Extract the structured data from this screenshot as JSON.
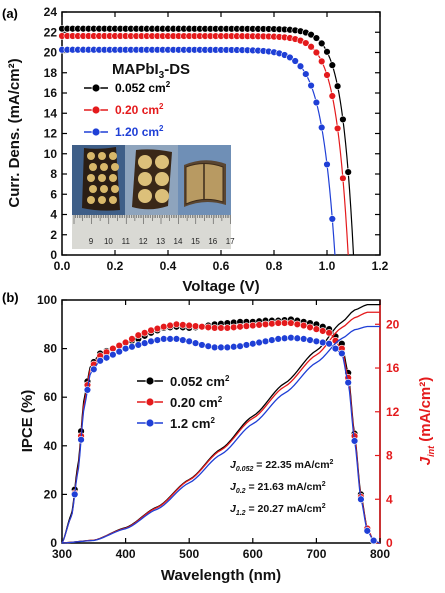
{
  "chart_data": [
    {
      "panel": "(a)",
      "type": "line",
      "inset_title": "MAPbI",
      "inset_title_sub": "3",
      "inset_title_suffix": "-DS",
      "xlabel": "Voltage (V)",
      "ylabel": "Curr. Dens. (mA/cm²)",
      "xlim": [
        0,
        1.2
      ],
      "ylim": [
        0,
        24
      ],
      "xticks": [
        "0.0",
        "0.2",
        "0.4",
        "0.6",
        "0.8",
        "1.0",
        "1.2"
      ],
      "yticks": [
        "0",
        "2",
        "4",
        "6",
        "8",
        "10",
        "12",
        "14",
        "16",
        "18",
        "20",
        "22",
        "24"
      ],
      "legend_position": "upper-middle",
      "series": [
        {
          "name": "0.052 cm",
          "unit_sup": "2",
          "color": "#000000",
          "jsc": 22.35,
          "voc": 1.1,
          "n": 1.7
        },
        {
          "name": "0.20 cm",
          "unit_sup": "2",
          "color": "#e41a1c",
          "jsc": 21.63,
          "voc": 1.08,
          "n": 1.8
        },
        {
          "name": "1.20 cm",
          "unit_sup": "2",
          "color": "#1f3fd6",
          "jsc": 20.27,
          "voc": 1.03,
          "n": 2.0
        }
      ],
      "ruler_ticks": [
        "9",
        "10",
        "11",
        "12",
        "13",
        "14",
        "15",
        "16",
        "17"
      ]
    },
    {
      "panel": "(b)",
      "type": "line",
      "xlabel": "Wavelength (nm)",
      "ylabel": "IPCE (%)",
      "ylabel_right": "J",
      "ylabel_right_sub": "int",
      "ylabel_right_suffix": " (mA/cm²)",
      "xlim": [
        300,
        800
      ],
      "ylim": [
        0,
        100
      ],
      "ylim_right": [
        0,
        22.22
      ],
      "xticks": [
        "300",
        "400",
        "500",
        "600",
        "700",
        "800"
      ],
      "yticks": [
        "0",
        "20",
        "40",
        "60",
        "80",
        "100"
      ],
      "yticks_right": [
        "0",
        "4",
        "8",
        "12",
        "16",
        "20"
      ],
      "right_axis_color": "#e41a1c",
      "legend_position": "center",
      "annotations": [
        {
          "symbol": "J",
          "sub": "0.052",
          "text": " = 22.35 mA/cm",
          "sup": "2"
        },
        {
          "symbol": "J",
          "sub": "0.2",
          "text": " = 21.63 mA/cm",
          "sup": "2"
        },
        {
          "symbol": "J",
          "sub": "1.2",
          "text": " = 20.27 mA/cm",
          "sup": "2"
        }
      ],
      "series": [
        {
          "name": "0.052 cm",
          "unit_sup": "2",
          "color": "#000000",
          "ipce": [
            [
              300,
              0
            ],
            [
              315,
              12
            ],
            [
              325,
              32
            ],
            [
              335,
              60
            ],
            [
              345,
              73
            ],
            [
              360,
              78
            ],
            [
              380,
              80
            ],
            [
              400,
              82.5
            ],
            [
              420,
              84
            ],
            [
              440,
              86.5
            ],
            [
              460,
              88.5
            ],
            [
              480,
              89
            ],
            [
              500,
              88.5
            ],
            [
              520,
              89
            ],
            [
              540,
              90
            ],
            [
              560,
              90.5
            ],
            [
              580,
              91
            ],
            [
              600,
              91
            ],
            [
              620,
              91.5
            ],
            [
              640,
              91.5
            ],
            [
              660,
              92
            ],
            [
              680,
              91
            ],
            [
              700,
              90
            ],
            [
              720,
              88
            ],
            [
              740,
              82
            ],
            [
              750,
              70
            ],
            [
              760,
              45
            ],
            [
              770,
              20
            ],
            [
              780,
              6
            ],
            [
              790,
              1
            ],
            [
              800,
              0
            ]
          ],
          "jsc_int": [
            [
              300,
              0
            ],
            [
              350,
              0.25
            ],
            [
              400,
              1.4
            ],
            [
              450,
              3.3
            ],
            [
              500,
              5.8
            ],
            [
              550,
              8.6
            ],
            [
              600,
              11.6
            ],
            [
              650,
              14.6
            ],
            [
              700,
              17.6
            ],
            [
              740,
              20.2
            ],
            [
              760,
              21.3
            ],
            [
              780,
              21.8
            ],
            [
              800,
              21.8
            ]
          ]
        },
        {
          "name": "0.20 cm",
          "unit_sup": "2",
          "color": "#e41a1c",
          "ipce": [
            [
              300,
              0
            ],
            [
              315,
              11
            ],
            [
              325,
              30
            ],
            [
              335,
              58
            ],
            [
              345,
              72
            ],
            [
              360,
              77
            ],
            [
              380,
              80
            ],
            [
              400,
              82.5
            ],
            [
              420,
              85.5
            ],
            [
              440,
              87.5
            ],
            [
              460,
              89
            ],
            [
              480,
              90
            ],
            [
              500,
              89.5
            ],
            [
              520,
              89
            ],
            [
              540,
              88.5
            ],
            [
              560,
              88.5
            ],
            [
              580,
              89
            ],
            [
              600,
              89.5
            ],
            [
              620,
              90
            ],
            [
              640,
              90.5
            ],
            [
              660,
              90.5
            ],
            [
              680,
              89.5
            ],
            [
              700,
              88
            ],
            [
              720,
              86.5
            ],
            [
              740,
              80
            ],
            [
              750,
              68
            ],
            [
              760,
              44
            ],
            [
              770,
              19
            ],
            [
              780,
              6
            ],
            [
              790,
              1
            ],
            [
              800,
              0
            ]
          ],
          "jsc_int": [
            [
              300,
              0
            ],
            [
              350,
              0.25
            ],
            [
              400,
              1.35
            ],
            [
              450,
              3.25
            ],
            [
              500,
              5.75
            ],
            [
              550,
              8.5
            ],
            [
              600,
              11.4
            ],
            [
              650,
              14.3
            ],
            [
              700,
              17.2
            ],
            [
              740,
              19.7
            ],
            [
              760,
              20.6
            ],
            [
              780,
              21.1
            ],
            [
              800,
              21.1
            ]
          ]
        },
        {
          "name": "1.2 cm",
          "unit_sup": "2",
          "color": "#1f3fd6",
          "ipce": [
            [
              300,
              0
            ],
            [
              315,
              11
            ],
            [
              325,
              29
            ],
            [
              335,
              56
            ],
            [
              345,
              70
            ],
            [
              360,
              75
            ],
            [
              380,
              77.5
            ],
            [
              400,
              80
            ],
            [
              420,
              81.5
            ],
            [
              440,
              83
            ],
            [
              460,
              84
            ],
            [
              480,
              84
            ],
            [
              500,
              83
            ],
            [
              520,
              81.5
            ],
            [
              540,
              80.5
            ],
            [
              560,
              80.5
            ],
            [
              580,
              81
            ],
            [
              600,
              82
            ],
            [
              620,
              83
            ],
            [
              640,
              84
            ],
            [
              660,
              84.5
            ],
            [
              680,
              84
            ],
            [
              700,
              83
            ],
            [
              720,
              82
            ],
            [
              740,
              78
            ],
            [
              750,
              66
            ],
            [
              760,
              42
            ],
            [
              770,
              18
            ],
            [
              780,
              5
            ],
            [
              790,
              1
            ],
            [
              800,
              0
            ]
          ],
          "jsc_int": [
            [
              300,
              0
            ],
            [
              350,
              0.23
            ],
            [
              400,
              1.3
            ],
            [
              450,
              3.1
            ],
            [
              500,
              5.5
            ],
            [
              550,
              8.1
            ],
            [
              600,
              10.9
            ],
            [
              650,
              13.7
            ],
            [
              700,
              16.5
            ],
            [
              740,
              18.7
            ],
            [
              760,
              19.5
            ],
            [
              780,
              19.8
            ],
            [
              800,
              19.8
            ]
          ]
        }
      ]
    }
  ]
}
